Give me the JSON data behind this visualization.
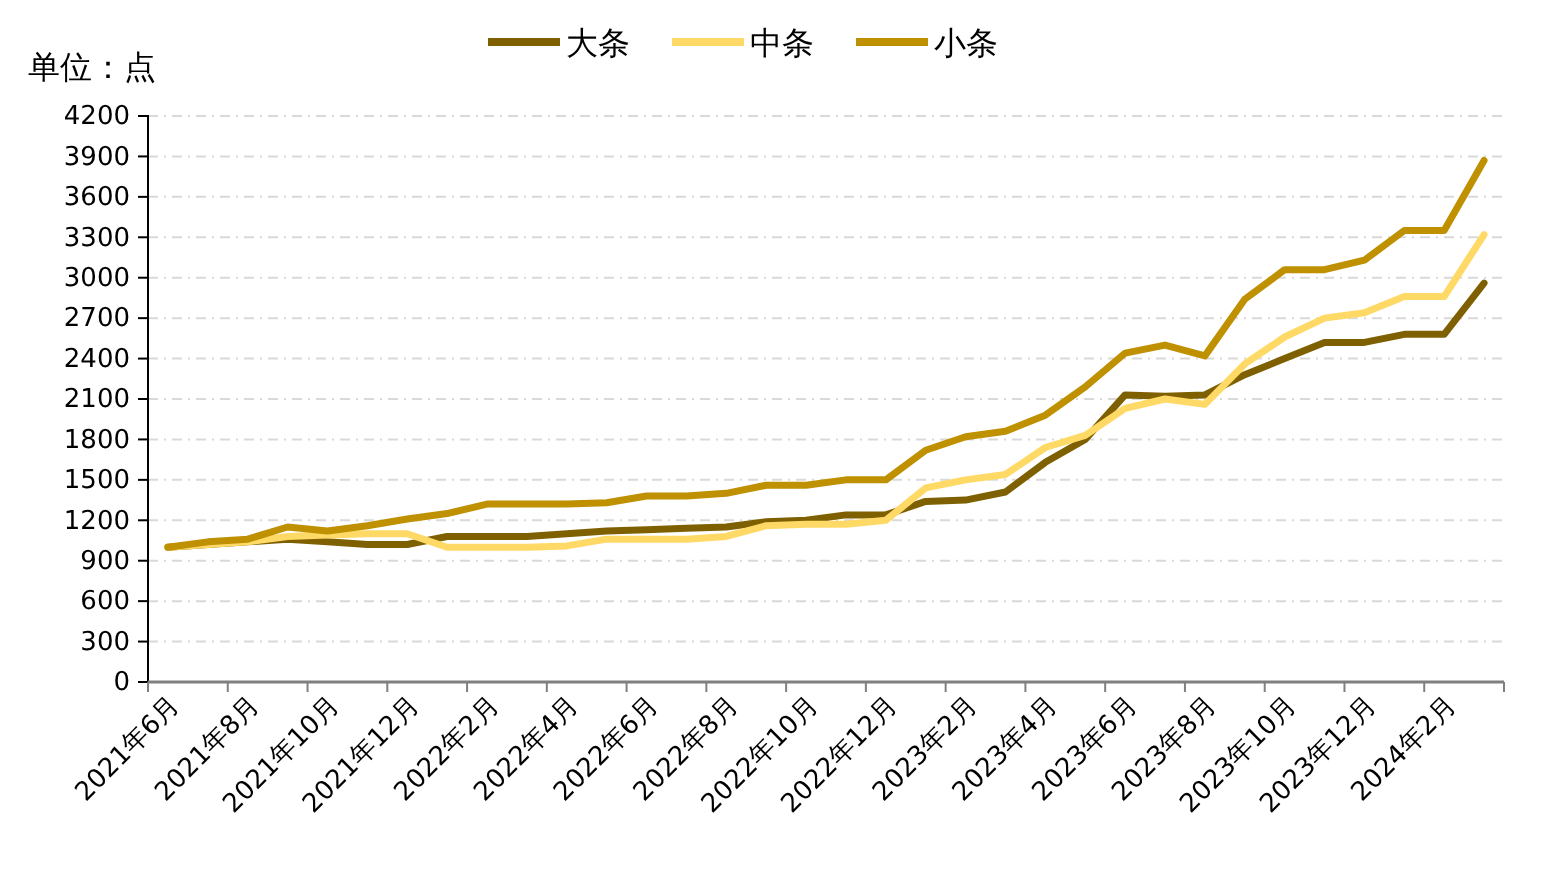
{
  "chart_data": {
    "type": "line",
    "ylabel": "单位：点",
    "categories": [
      "2021年6月",
      null,
      "2021年8月",
      null,
      "2021年10月",
      null,
      "2021年12月",
      null,
      "2022年2月",
      null,
      "2022年4月",
      null,
      "2022年6月",
      null,
      "2022年8月",
      null,
      "2022年10月",
      null,
      "2022年12月",
      null,
      "2023年2月",
      null,
      "2023年4月",
      null,
      "2023年6月",
      null,
      "2023年8月",
      null,
      "2023年10月",
      null,
      "2023年12月",
      null,
      "2024年2月",
      null
    ],
    "series": [
      {
        "name": "大条",
        "color": "#7f6000",
        "values": [
          1000,
          1020,
          1040,
          1060,
          1040,
          1020,
          1020,
          1080,
          1080,
          1080,
          1100,
          1120,
          1130,
          1140,
          1150,
          1190,
          1200,
          1240,
          1240,
          1340,
          1350,
          1410,
          1630,
          1800,
          2130,
          2120,
          2130,
          2280,
          2400,
          2520,
          2520,
          2580,
          2580,
          2960
        ]
      },
      {
        "name": "中条",
        "color": "#ffd966",
        "values": [
          1000,
          1020,
          1040,
          1080,
          1090,
          1100,
          1100,
          1000,
          1000,
          1000,
          1010,
          1060,
          1060,
          1060,
          1080,
          1160,
          1170,
          1170,
          1200,
          1440,
          1500,
          1540,
          1740,
          1830,
          2030,
          2100,
          2060,
          2360,
          2560,
          2700,
          2740,
          2860,
          2860,
          3320
        ]
      },
      {
        "name": "小条",
        "color": "#bf9000",
        "values": [
          1000,
          1040,
          1060,
          1150,
          1120,
          1160,
          1210,
          1250,
          1320,
          1320,
          1320,
          1330,
          1380,
          1380,
          1400,
          1460,
          1460,
          1500,
          1500,
          1720,
          1820,
          1860,
          1980,
          2190,
          2440,
          2500,
          2420,
          2840,
          3060,
          3060,
          3130,
          3350,
          3350,
          3870
        ]
      }
    ],
    "ylim": [
      0,
      4200
    ],
    "yticks": [
      0,
      300,
      600,
      900,
      1200,
      1500,
      1800,
      2100,
      2400,
      2700,
      3000,
      3300,
      3600,
      3900,
      4200
    ],
    "grid": "y",
    "legend": "top",
    "line_style": "solid"
  }
}
